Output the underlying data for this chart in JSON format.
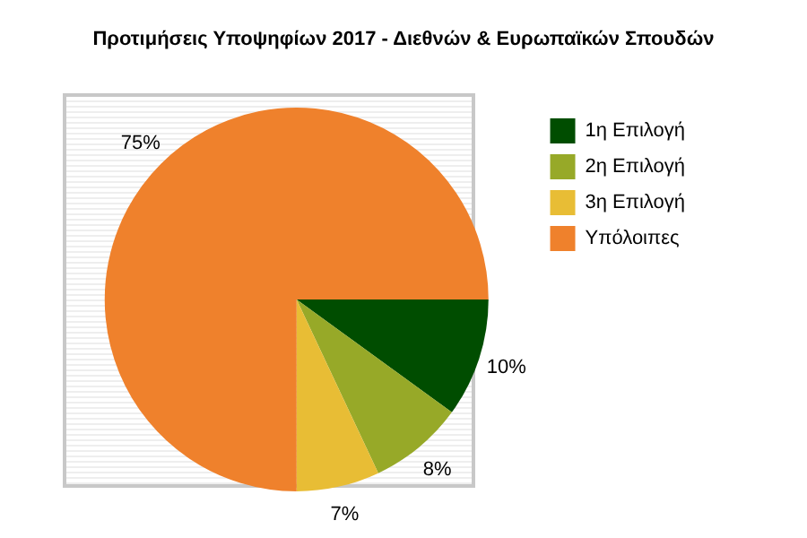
{
  "chart_data": {
    "type": "pie",
    "title": "Προτιμήσεις Υποψηφίων 2017 - Διεθνών & Ευρωπαϊκών Σπουδών",
    "categories": [
      "1η Επιλογή",
      "2η Επιλογή",
      "3η Επιλογή",
      "Υπόλοιπες"
    ],
    "values": [
      10,
      8,
      7,
      75
    ],
    "colors": [
      "#004d00",
      "#97a928",
      "#e8bd35",
      "#ef812c"
    ],
    "value_labels": [
      "10%",
      "8%",
      "7%",
      "75%"
    ],
    "legend": "top right"
  }
}
